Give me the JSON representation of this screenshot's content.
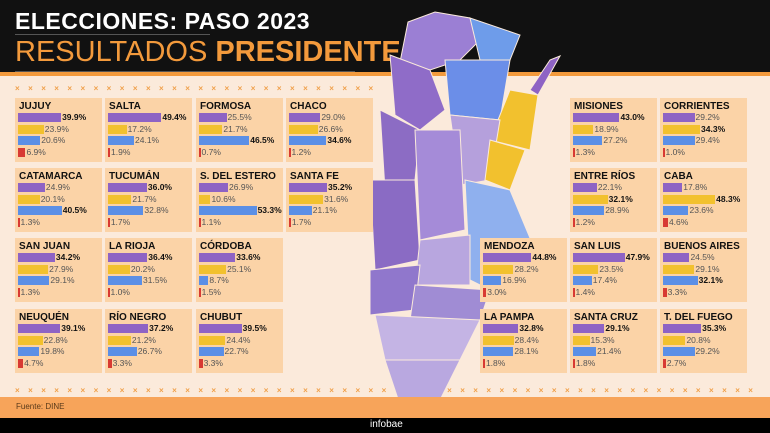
{
  "header": {
    "title": "ELECCIONES: PASO 2023",
    "subtitle_light": "RESULTADOS",
    "subtitle_bold": "PRESIDENTE"
  },
  "footer": {
    "source": "Fuente: DINE",
    "brand": "infobae"
  },
  "colors": {
    "series": [
      "#8e63c4",
      "#f2c12e",
      "#5b8fe6",
      "#d83a33"
    ],
    "card": "#fbd3a7",
    "accent": "#f39a3c"
  },
  "chart_data": {
    "type": "bar",
    "title": "ELECCIONES: PASO 2023 — RESULTADOS PRESIDENTE",
    "unit": "%",
    "series_colors": [
      "purple",
      "yellow",
      "blue",
      "red"
    ],
    "provinces": [
      {
        "name": "JUJUY",
        "values": [
          39.9,
          23.9,
          20.6,
          6.9
        ]
      },
      {
        "name": "SALTA",
        "values": [
          49.4,
          17.2,
          24.1,
          1.9
        ]
      },
      {
        "name": "FORMOSA",
        "values": [
          25.5,
          21.7,
          46.5,
          0.7
        ]
      },
      {
        "name": "CHACO",
        "values": [
          29.0,
          26.6,
          34.6,
          1.2
        ]
      },
      {
        "name": "CATAMARCA",
        "values": [
          24.9,
          20.1,
          40.5,
          1.3
        ]
      },
      {
        "name": "TUCUMÁN",
        "values": [
          36.0,
          21.7,
          32.8,
          1.7
        ]
      },
      {
        "name": "S. DEL ESTERO",
        "values": [
          26.9,
          10.6,
          53.3,
          1.1
        ]
      },
      {
        "name": "SANTA FE",
        "values": [
          35.2,
          31.6,
          21.1,
          1.7
        ]
      },
      {
        "name": "SAN JUAN",
        "values": [
          34.2,
          27.9,
          29.1,
          1.3
        ]
      },
      {
        "name": "LA RIOJA",
        "values": [
          36.4,
          20.2,
          31.5,
          1.0
        ]
      },
      {
        "name": "CÓRDOBA",
        "values": [
          33.6,
          25.1,
          8.7,
          1.5
        ]
      },
      {
        "name": "NEUQUÉN",
        "values": [
          39.1,
          22.8,
          19.8,
          4.7
        ]
      },
      {
        "name": "RÍO NEGRO",
        "values": [
          37.2,
          21.2,
          26.7,
          3.3
        ]
      },
      {
        "name": "CHUBUT",
        "values": [
          39.5,
          24.4,
          22.7,
          3.3
        ]
      },
      {
        "name": "MISIONES",
        "values": [
          43.0,
          18.9,
          27.2,
          1.3
        ]
      },
      {
        "name": "CORRIENTES",
        "values": [
          29.2,
          34.3,
          29.4,
          1.0
        ]
      },
      {
        "name": "ENTRE RÍOS",
        "values": [
          22.1,
          32.1,
          28.9,
          1.2
        ]
      },
      {
        "name": "CABA",
        "values": [
          17.8,
          48.3,
          23.6,
          4.6
        ]
      },
      {
        "name": "MENDOZA",
        "values": [
          44.8,
          28.2,
          16.9,
          3.0
        ]
      },
      {
        "name": "SAN LUIS",
        "values": [
          47.9,
          23.5,
          17.4,
          1.4
        ]
      },
      {
        "name": "BUENOS AIRES",
        "values": [
          24.5,
          29.1,
          32.1,
          3.3
        ]
      },
      {
        "name": "LA PAMPA",
        "values": [
          32.8,
          28.4,
          28.1,
          1.8
        ]
      },
      {
        "name": "SANTA CRUZ",
        "values": [
          29.1,
          15.3,
          21.4,
          1.8
        ]
      },
      {
        "name": "T. DEL FUEGO",
        "values": [
          35.3,
          20.8,
          29.2,
          2.7
        ]
      }
    ]
  }
}
